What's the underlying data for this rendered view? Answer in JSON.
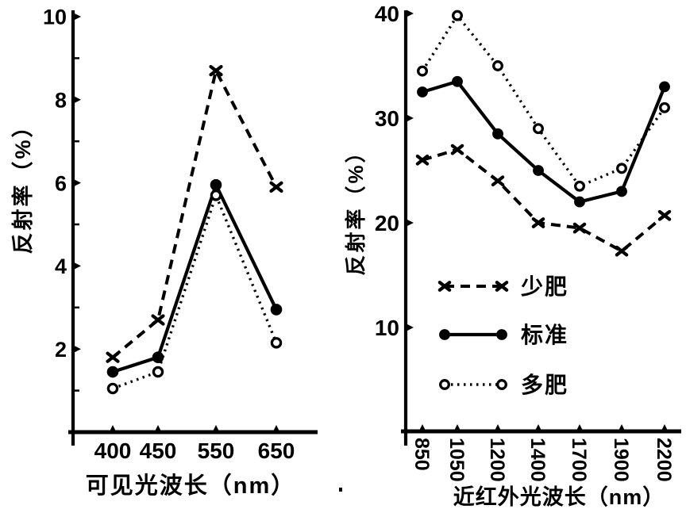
{
  "page": {
    "background": "#ffffff",
    "ink": "#000000"
  },
  "chart_data": [
    {
      "type": "line",
      "title": "",
      "xlabel": "可见光波长（nm）",
      "ylabel": "反射率（%）",
      "x_categories": [
        "400",
        "450",
        "550",
        "650"
      ],
      "yticks": [
        "2",
        "4",
        "6",
        "8",
        "10"
      ],
      "ytick_values": [
        2,
        4,
        6,
        8,
        10
      ],
      "minor_ytick_values": [
        1,
        3,
        5,
        7,
        9
      ],
      "ylim": [
        0,
        10
      ],
      "grid": "off",
      "legend_position": "none",
      "series": [
        {
          "name": "少肥",
          "marker": "x",
          "linestyle": "dashed",
          "values": [
            1.8,
            2.7,
            8.7,
            5.9
          ]
        },
        {
          "name": "标准",
          "marker": "filled-circle",
          "linestyle": "solid",
          "values": [
            1.45,
            1.8,
            5.95,
            2.95
          ]
        },
        {
          "name": "多肥",
          "marker": "open-circle",
          "linestyle": "dotted",
          "values": [
            1.05,
            1.45,
            5.7,
            2.15
          ]
        }
      ]
    },
    {
      "type": "line",
      "title": "",
      "xlabel": "近红外光波长（nm）",
      "ylabel": "反射率（%）",
      "x_categories": [
        "850",
        "1050",
        "1200",
        "1400",
        "1700",
        "1900",
        "2200"
      ],
      "yticks": [
        "10",
        "20",
        "30",
        "40"
      ],
      "ytick_values": [
        10,
        20,
        30,
        40
      ],
      "minor_ytick_values": [],
      "ylim": [
        0,
        40
      ],
      "grid": "off",
      "legend_position": "inside-lower-center",
      "legend_entries": [
        "少肥",
        "标准",
        "多肥"
      ],
      "series": [
        {
          "name": "少肥",
          "marker": "x",
          "linestyle": "dashed",
          "values": [
            26,
            27,
            24,
            20,
            19.5,
            17.3,
            20.7
          ]
        },
        {
          "name": "标准",
          "marker": "filled-circle",
          "linestyle": "solid",
          "values": [
            32.5,
            33.5,
            28.5,
            25,
            22,
            23,
            33
          ]
        },
        {
          "name": "多肥",
          "marker": "open-circle",
          "linestyle": "dotted",
          "values": [
            34.5,
            39.8,
            35,
            29,
            23.5,
            25.2,
            31
          ]
        }
      ]
    }
  ]
}
